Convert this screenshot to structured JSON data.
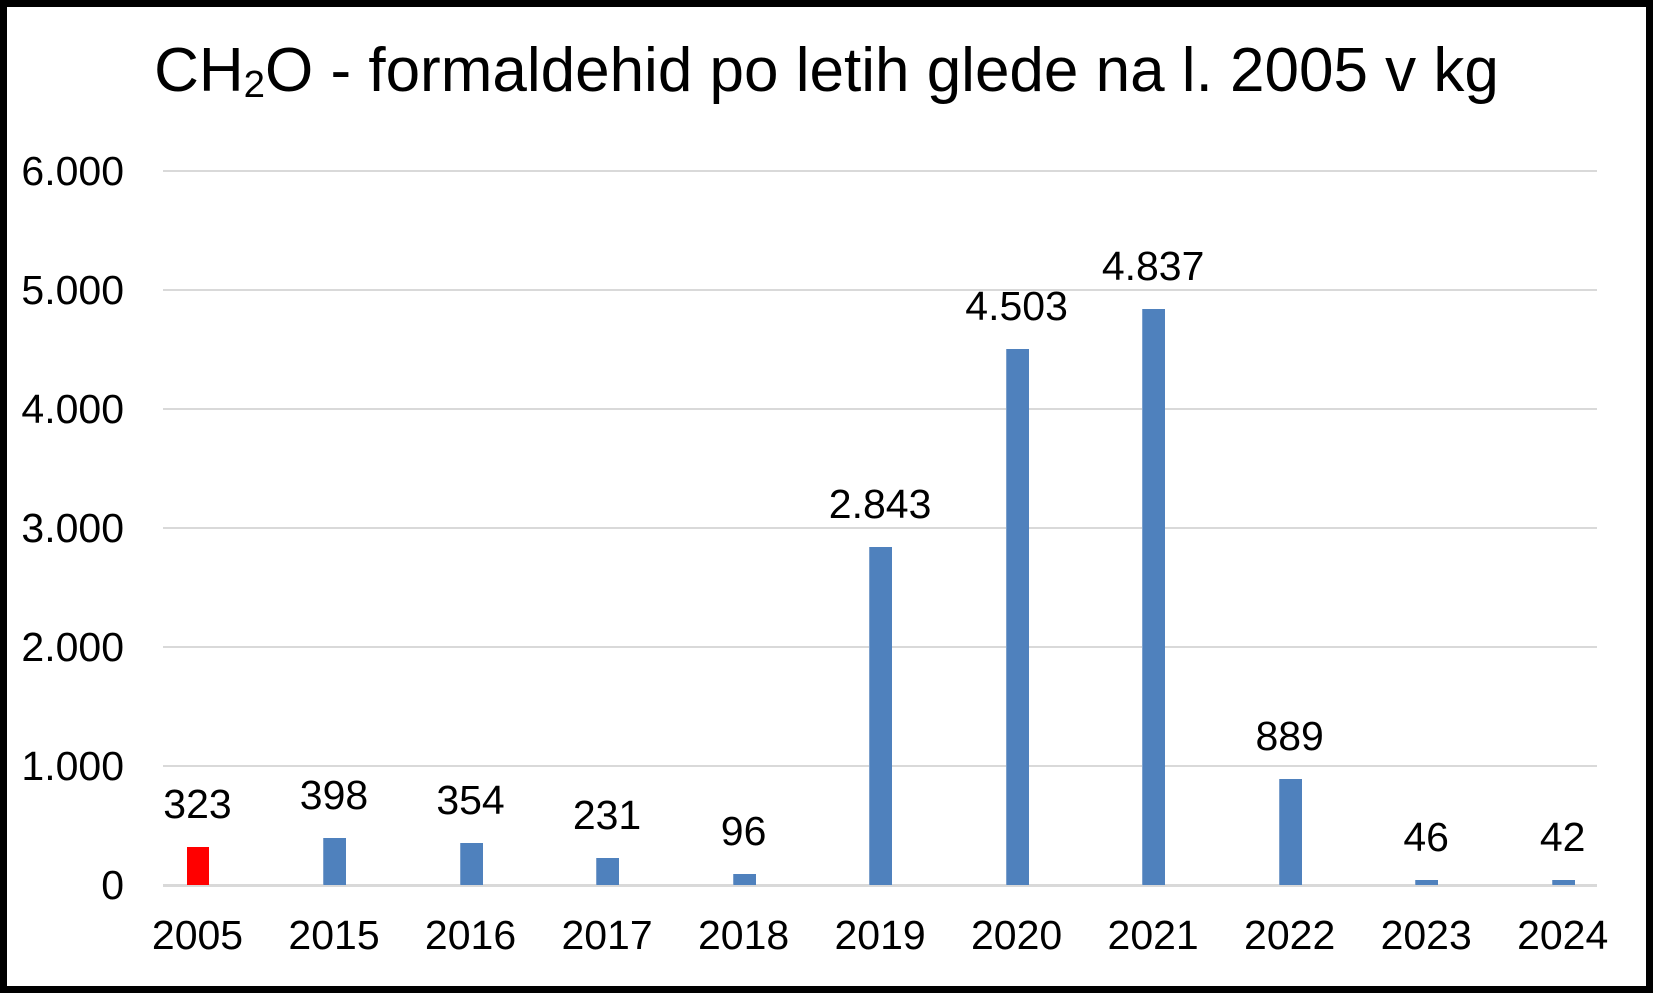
{
  "chart_data": {
    "type": "bar",
    "title": "CH₂O - formaldehid po letih glede na l. 2005 v kg",
    "title_parts": {
      "pre": "CH",
      "sub": "2",
      "post": "O - formaldehid po letih glede na l. 2005 v kg"
    },
    "xlabel": "",
    "ylabel": "",
    "unit": "kg",
    "categories": [
      "2005",
      "2015",
      "2016",
      "2017",
      "2018",
      "2019",
      "2020",
      "2021",
      "2022",
      "2023",
      "2024"
    ],
    "values": [
      323,
      398,
      354,
      231,
      96,
      2843,
      4503,
      4837,
      889,
      46,
      42
    ],
    "value_labels": [
      "323",
      "398",
      "354",
      "231",
      "96",
      "2.843",
      "4.503",
      "4.837",
      "889",
      "46",
      "42"
    ],
    "bar_colors": [
      "#FF0000",
      "#4F81BD",
      "#4F81BD",
      "#4F81BD",
      "#4F81BD",
      "#4F81BD",
      "#4F81BD",
      "#4F81BD",
      "#4F81BD",
      "#4F81BD",
      "#4F81BD"
    ],
    "y_axis": {
      "min": 0,
      "max": 6000,
      "tick_step": 1000,
      "tick_labels": [
        "0",
        "1.000",
        "2.000",
        "3.000",
        "4.000",
        "5.000",
        "6.000"
      ]
    },
    "grid": true,
    "legend": "none",
    "colors": {
      "highlight_bar": "#FF0000",
      "default_bar": "#4F81BD",
      "gridline": "#D9D9D9",
      "text": "#000000",
      "background": "#FFFFFF",
      "frame_border": "#000000"
    }
  }
}
